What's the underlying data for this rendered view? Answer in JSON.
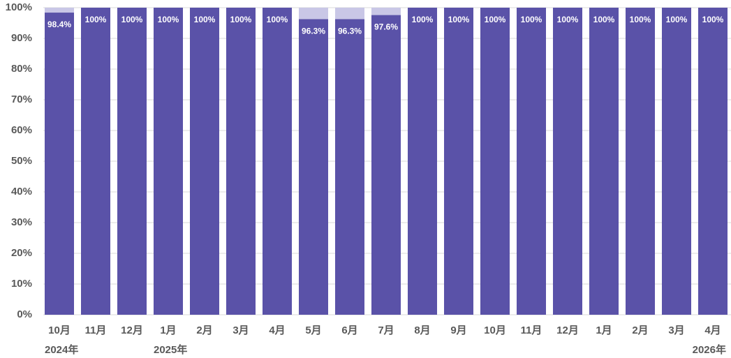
{
  "chart_data": {
    "type": "stacked_bar",
    "categories": [
      "10月",
      "11月",
      "12月",
      "1月",
      "2月",
      "3月",
      "4月",
      "5月",
      "6月",
      "7月",
      "8月",
      "9月",
      "10月",
      "11月",
      "12月",
      "1月",
      "2月",
      "3月",
      "4月"
    ],
    "year_labels": [
      {
        "index": 0,
        "label": "2024年"
      },
      {
        "index": 3,
        "label": "2025年"
      },
      {
        "index": 18,
        "label": "2026年"
      }
    ],
    "series": [
      {
        "color": "#5a52a8",
        "values": [
          98.4,
          100,
          100,
          100,
          100,
          100,
          100,
          96.3,
          96.3,
          97.6,
          100,
          100,
          100,
          100,
          100,
          100,
          100,
          100,
          100
        ],
        "value_labels": [
          "98.4%",
          "100%",
          "100%",
          "100%",
          "100%",
          "100%",
          "100%",
          "96.3%",
          "96.3%",
          "97.6%",
          "100%",
          "100%",
          "100%",
          "100%",
          "100%",
          "100%",
          "100%",
          "100%",
          "100%"
        ]
      },
      {
        "color": "#c9c7e6",
        "values": [
          1.6,
          0,
          0,
          0,
          0,
          0,
          0,
          3.7,
          3.7,
          2.4,
          0,
          0,
          0,
          0,
          0,
          0,
          0,
          0,
          0
        ]
      }
    ],
    "ylim": [
      0,
      100
    ],
    "yticks": [
      {
        "value": 0,
        "label": "0%"
      },
      {
        "value": 10,
        "label": "10%"
      },
      {
        "value": 20,
        "label": "20%"
      },
      {
        "value": 30,
        "label": "30%"
      },
      {
        "value": 40,
        "label": "40%"
      },
      {
        "value": 50,
        "label": "50%"
      },
      {
        "value": 60,
        "label": "60%"
      },
      {
        "value": 70,
        "label": "70%"
      },
      {
        "value": 80,
        "label": "80%"
      },
      {
        "value": 90,
        "label": "90%"
      },
      {
        "value": 100,
        "label": "100%"
      }
    ],
    "grid": true
  }
}
